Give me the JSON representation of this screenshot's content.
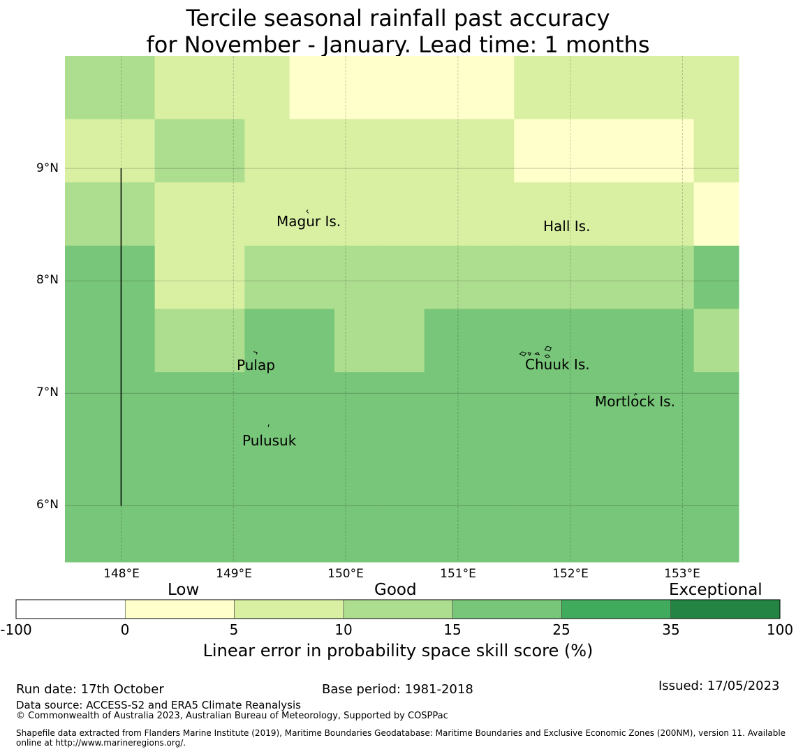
{
  "title_line1": "Tercile seasonal rainfall past accuracy",
  "title_line2": "for November - January. Lead time: 1 months",
  "map": {
    "lon_range": [
      147.5,
      153.5
    ],
    "lat_range": [
      5.5,
      10.0
    ],
    "x_ticks": [
      {
        "value": 148,
        "label": "148°E"
      },
      {
        "value": 149,
        "label": "149°E"
      },
      {
        "value": 150,
        "label": "150°E"
      },
      {
        "value": 151,
        "label": "151°E"
      },
      {
        "value": 152,
        "label": "152°E"
      },
      {
        "value": 153,
        "label": "153°E"
      }
    ],
    "y_ticks": [
      {
        "value": 9,
        "label": "9°N"
      },
      {
        "value": 8,
        "label": "8°N"
      },
      {
        "value": 7,
        "label": "7°N"
      },
      {
        "value": 6,
        "label": "6°N"
      }
    ],
    "grid_rows": [
      [
        10,
        10,
        5,
        5,
        5,
        0,
        0,
        0,
        0,
        0,
        5,
        5,
        5,
        5,
        5
      ],
      [
        5,
        5,
        10,
        10,
        5,
        5,
        5,
        5,
        5,
        5,
        0,
        0,
        0,
        0,
        5
      ],
      [
        10,
        10,
        5,
        5,
        5,
        5,
        5,
        5,
        5,
        5,
        5,
        5,
        5,
        5,
        0
      ],
      [
        15,
        15,
        5,
        5,
        10,
        10,
        10,
        10,
        10,
        10,
        10,
        10,
        10,
        10,
        15
      ],
      [
        15,
        15,
        10,
        10,
        15,
        15,
        10,
        10,
        15,
        15,
        15,
        15,
        15,
        15,
        10
      ],
      [
        15,
        15,
        15,
        15,
        15,
        15,
        15,
        15,
        15,
        15,
        15,
        15,
        15,
        15,
        15
      ],
      [
        15,
        15,
        15,
        15,
        15,
        15,
        15,
        15,
        15,
        15,
        15,
        15,
        15,
        15,
        15
      ],
      [
        15,
        15,
        15,
        15,
        15,
        15,
        15,
        15,
        15,
        15,
        15,
        15,
        15,
        15,
        15
      ]
    ],
    "grid_bounds": {
      "west": 147.5,
      "east": 153.5,
      "north": 10.0,
      "south": 5.5
    },
    "places": [
      {
        "name": "Magur Is.",
        "lon": 149.7,
        "lat": 8.55
      },
      {
        "name": "Hall Is.",
        "lon": 151.98,
        "lat": 8.5
      },
      {
        "name": "Pulap",
        "lon": 149.21,
        "lat": 7.25
      },
      {
        "name": "Chuuk Is.",
        "lon": 151.88,
        "lat": 7.27
      },
      {
        "name": "Mortlock Is.",
        "lon": 152.59,
        "lat": 6.92
      },
      {
        "name": "Pulusuk",
        "lon": 149.33,
        "lat": 6.58
      }
    ],
    "boundary_line": {
      "lon": 148.0,
      "lat_start": 6.0,
      "lat_end": 9.0
    }
  },
  "colorbar": {
    "bins": [
      {
        "from": -100,
        "to": 0,
        "color": "#ffffff"
      },
      {
        "from": 0,
        "to": 5,
        "color": "#ffffcc"
      },
      {
        "from": 5,
        "to": 10,
        "color": "#d9f0a3"
      },
      {
        "from": 10,
        "to": 15,
        "color": "#addd8e"
      },
      {
        "from": 15,
        "to": 25,
        "color": "#78c679"
      },
      {
        "from": 25,
        "to": 35,
        "color": "#41ab5d"
      },
      {
        "from": 35,
        "to": 100,
        "color": "#238443"
      }
    ],
    "tick_labels": [
      "-100",
      "0",
      "5",
      "10",
      "15",
      "25",
      "35",
      "100"
    ],
    "categories": {
      "low": "Low",
      "good": "Good",
      "exceptional": "Exceptional"
    },
    "label": "Linear error in probability space skill score (%)"
  },
  "footer": {
    "run_date": "Run date: 17th October",
    "base_period": "Base period: 1981-2018",
    "issued": "Issued: 17/05/2023",
    "data_source": "Data source: ACCESS-S2 and ERA5 Climate Reanalysis",
    "copyright": "© Commonwealth of Australia 2023, Australian Bureau of Meteorology, Supported by COSPPac",
    "shapefile_line1": "Shapefile data extracted from Flanders Marine Institute (2019), Maritime Boundaries Geodatabase: Maritime Boundaries and Exclusive Economic Zones (200NM), version 11. Available",
    "shapefile_line2": "online at http://www.marineregions.org/."
  }
}
